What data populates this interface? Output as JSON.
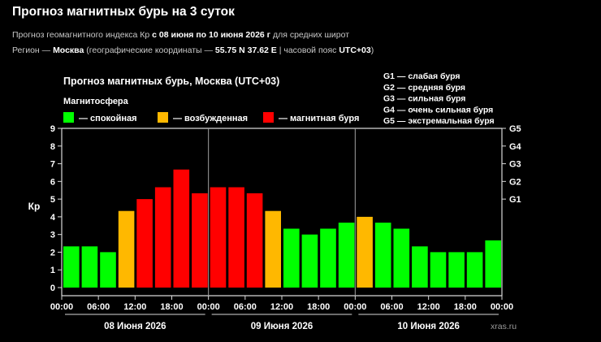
{
  "header": {
    "title": "Прогноз магнитных бурь на 3 суток",
    "line1": {
      "prefix": "Прогноз геомагнитного индекса Кр ",
      "range": "с 08 июня по 10 июня 2026 г",
      "suffix": " для средних широт"
    },
    "line2": {
      "region_label": "Регион — ",
      "city": "Москва",
      "coords_label": " (географические координаты — ",
      "coords": "55.75 N 37.62 E",
      "tz_label": " | часовой пояс ",
      "tz": "UTC+03",
      "tz_close": ")"
    }
  },
  "chart_data": {
    "type": "bar",
    "title": "Прогноз магнитных бурь, Москва (UTC+03)",
    "legend_title": "Магнитосфера",
    "legend": [
      {
        "label": "— спокойная",
        "color": "#00ff00"
      },
      {
        "label": "— возбужденная",
        "color": "#ffb800"
      },
      {
        "label": "— магнитная буря",
        "color": "#ff0000"
      }
    ],
    "g_legend": [
      "G1 — слабая буря",
      "G2 — средняя буря",
      "G3 — сильная буря",
      "G4 — очень сильная буря",
      "G5 — экстремальная буря"
    ],
    "ylabel": "Кр",
    "ylim": [
      0,
      9
    ],
    "y_ticks": [
      "0",
      "1",
      "2",
      "3",
      "4",
      "5",
      "6",
      "7",
      "8",
      "9"
    ],
    "g_ticks": [
      {
        "label": "G1",
        "value": 5
      },
      {
        "label": "G2",
        "value": 6
      },
      {
        "label": "G3",
        "value": 7
      },
      {
        "label": "G4",
        "value": 8
      },
      {
        "label": "G5",
        "value": 9
      }
    ],
    "x_ticks": [
      "00:00",
      "06:00",
      "12:00",
      "18:00",
      "00:00",
      "06:00",
      "12:00",
      "18:00",
      "00:00",
      "06:00",
      "12:00",
      "18:00",
      "00:00"
    ],
    "days": [
      "08 Июня 2026",
      "09 Июня 2026",
      "10 Июня 2026"
    ],
    "values": [
      2.33,
      2.33,
      2.0,
      4.33,
      5.0,
      5.67,
      6.67,
      5.33,
      5.67,
      5.67,
      5.33,
      4.33,
      3.33,
      3.0,
      3.33,
      3.67,
      4.0,
      3.67,
      3.33,
      2.33,
      2.0,
      2.0,
      2.0,
      2.67
    ],
    "colors": {
      "quiet": "#00ff00",
      "active": "#ffb800",
      "storm": "#ff0000"
    },
    "grid": false
  },
  "watermark": "xras.ru"
}
